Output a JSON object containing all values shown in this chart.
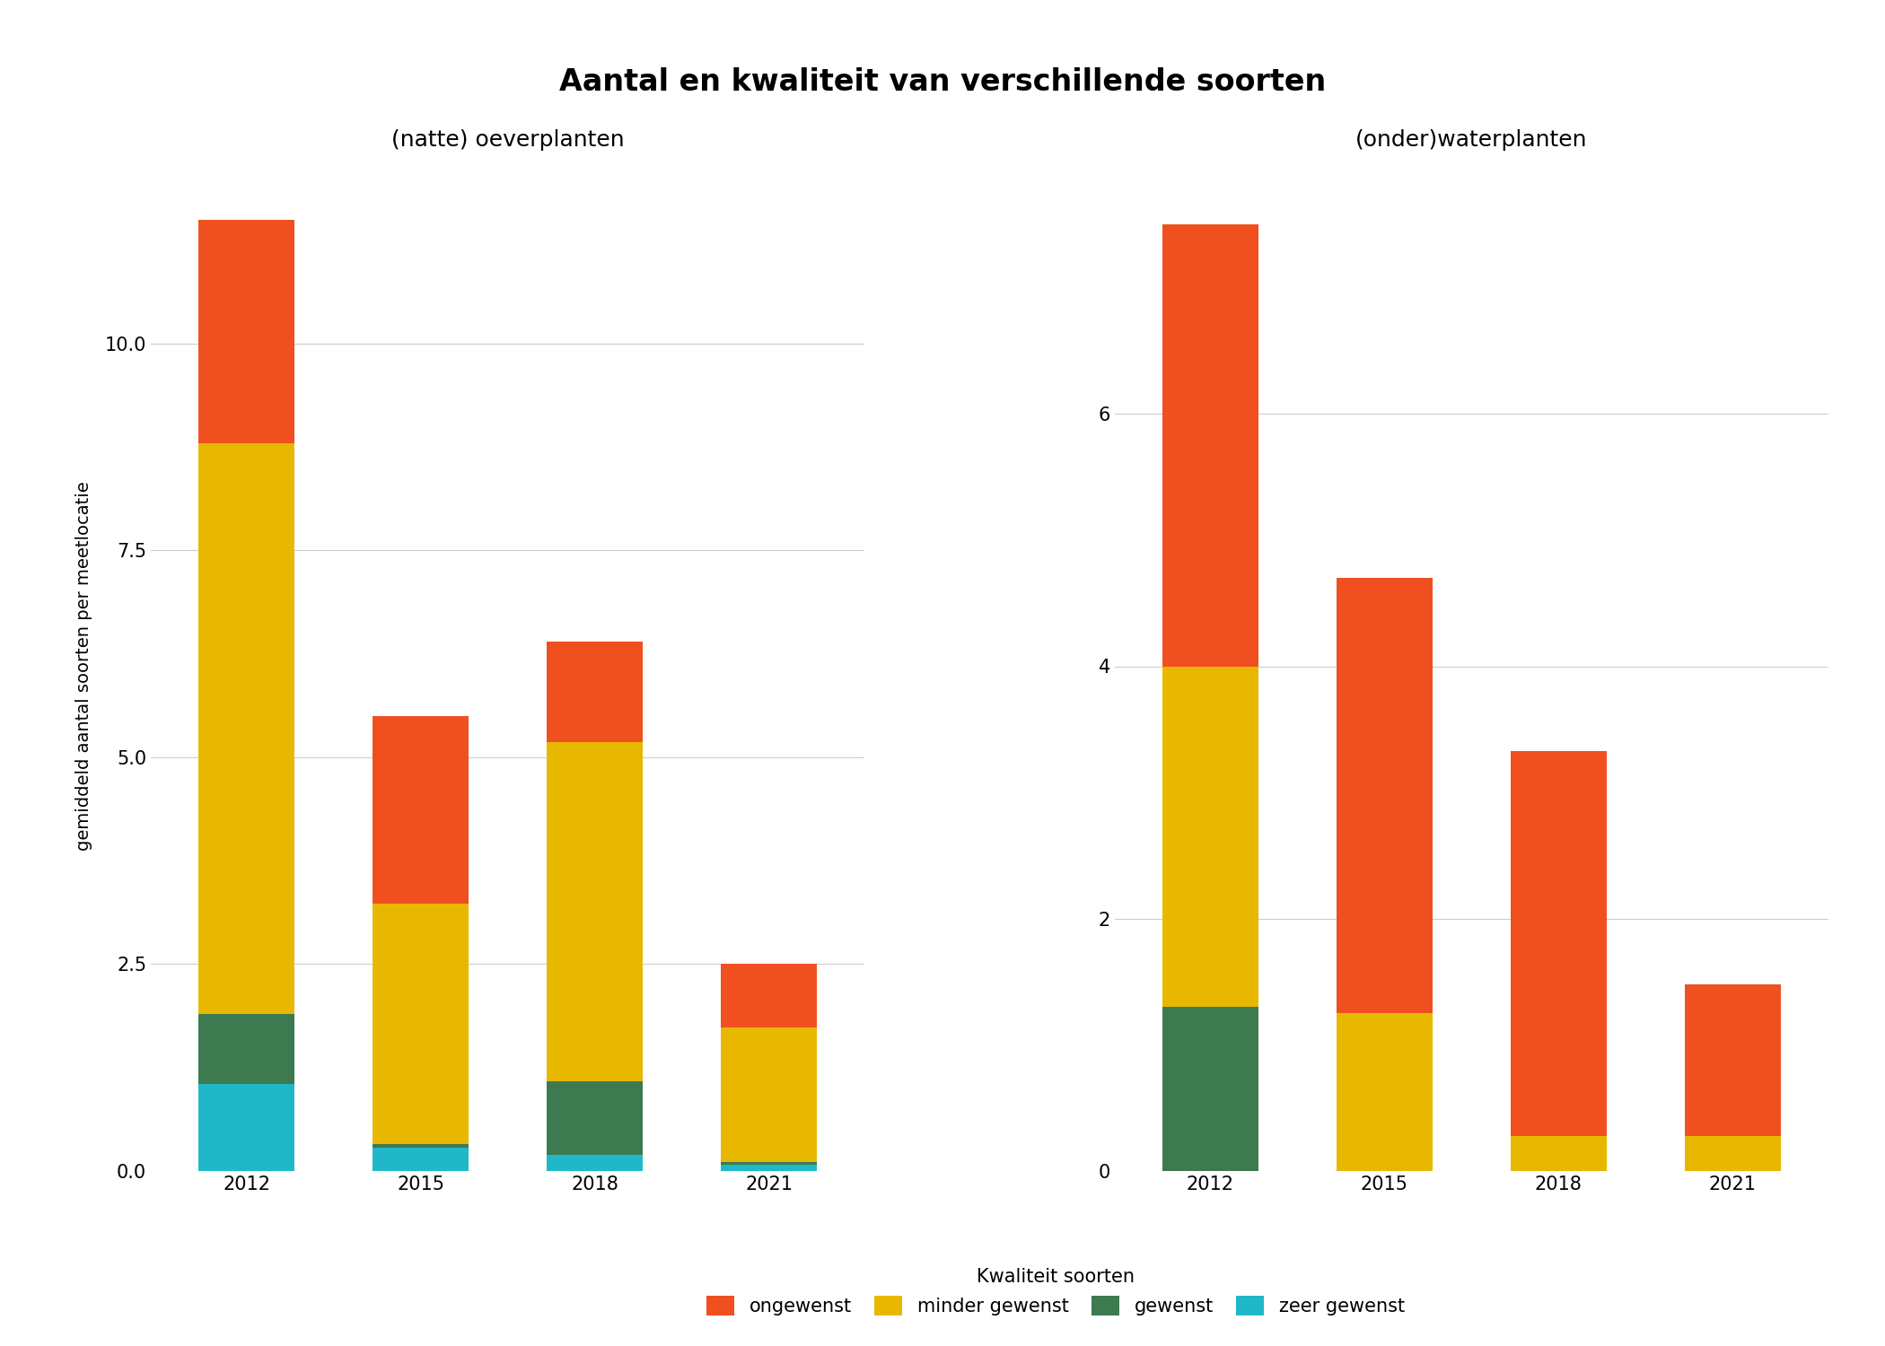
{
  "title": "Aantal en kwaliteit van verschillende soorten",
  "subtitle_left": "(natte) oeverplanten",
  "subtitle_right": "(onder)waterplanten",
  "ylabel": "gemiddeld aantal soorten per meetlocatie",
  "categories": [
    "2012",
    "2015",
    "2018",
    "2021"
  ],
  "left": {
    "zeer_gewenst": [
      1.05,
      0.28,
      0.2,
      0.08
    ],
    "gewenst": [
      0.85,
      0.05,
      0.88,
      0.03
    ],
    "minder_gewenst": [
      6.9,
      2.9,
      4.1,
      1.62
    ],
    "ongewenst": [
      2.7,
      2.27,
      1.22,
      0.77
    ]
  },
  "right": {
    "zeer_gewenst": [
      0.0,
      0.0,
      0.0,
      0.0
    ],
    "gewenst": [
      1.3,
      0.0,
      0.0,
      0.0
    ],
    "minder_gewenst": [
      2.7,
      1.25,
      0.28,
      0.28
    ],
    "ongewenst": [
      3.5,
      3.45,
      3.05,
      1.2
    ]
  },
  "colors": {
    "ongewenst": "#F05020",
    "minder_gewenst": "#E8B800",
    "gewenst": "#3D7A50",
    "zeer_gewenst": "#20B8C8"
  },
  "legend_label": "Kwaliteit soorten",
  "legend_entries": [
    "ongewenst",
    "minder gewenst",
    "gewenst",
    "zeer gewenst"
  ],
  "left_yticks": [
    0.0,
    2.5,
    5.0,
    7.5,
    10.0
  ],
  "right_yticks": [
    0,
    2,
    4,
    6
  ],
  "left_ylim": [
    0,
    12.2
  ],
  "right_ylim": [
    0,
    8.0
  ],
  "background_color": "#FFFFFF",
  "panel_bg": "#FFFFFF",
  "grid_color": "#CCCCCC",
  "bar_width": 0.55,
  "title_fontsize": 24,
  "subtitle_fontsize": 18,
  "tick_fontsize": 15,
  "label_fontsize": 14,
  "legend_fontsize": 15
}
